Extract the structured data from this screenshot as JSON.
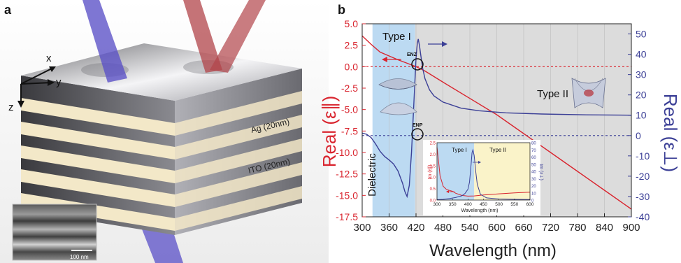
{
  "panels": {
    "a": {
      "label": "a",
      "axes": {
        "x": "x",
        "y": "y",
        "z": "z"
      },
      "layers": {
        "ag": "Ag (20nm)",
        "ito": "ITO (20nm)"
      },
      "sem_scale": "100 nm",
      "colors": {
        "ag": "#8e8e93",
        "ito": "#f3e8c8",
        "blue_beam": "#5a4fc7",
        "red_beam": "#b2444a"
      }
    },
    "b": {
      "label": "b"
    }
  },
  "chart_data": {
    "type": "line",
    "xlabel": "Wavelength (nm)",
    "ylabel_left": "Real (ε∥)",
    "ylabel_right": "Real (ε⊥)",
    "xlim": [
      300,
      900
    ],
    "ylim_left": [
      -17.5,
      5.0
    ],
    "ylim_right": [
      -40,
      55
    ],
    "x_ticks": [
      300,
      360,
      420,
      480,
      540,
      600,
      660,
      720,
      780,
      840,
      900
    ],
    "y_left_ticks": [
      5.0,
      2.5,
      0.0,
      -2.5,
      -5.0,
      -7.5,
      -10.0,
      -12.5,
      -15.0,
      -17.5
    ],
    "y_right_ticks": [
      50,
      40,
      30,
      20,
      10,
      0,
      -10,
      -20,
      -30,
      -40
    ],
    "regions": [
      {
        "name": "Dielectric",
        "from": 300,
        "to": 323,
        "color": "#ffffff"
      },
      {
        "name": "Type I",
        "from": 323,
        "to": 418,
        "color": "#bcdaf2"
      },
      {
        "name": "Type II",
        "from": 418,
        "to": 900,
        "color": "#dcdcdc"
      }
    ],
    "annotations": {
      "enz": "ENZ",
      "enp": "ENP",
      "type1": "Type I",
      "type2": "Type II",
      "dielectric": "Dielectric"
    },
    "series": [
      {
        "name": "Real (ε∥)",
        "axis": "left",
        "color": "#d9252f",
        "x": [
          300,
          320,
          340,
          360,
          380,
          400,
          420,
          440,
          480,
          540,
          600,
          660,
          720,
          780,
          840,
          900
        ],
        "y": [
          3.6,
          2.6,
          1.7,
          1.25,
          0.8,
          0.4,
          0.0,
          -0.5,
          -1.8,
          -3.7,
          -5.6,
          -7.8,
          -10.0,
          -12.2,
          -14.4,
          -16.6
        ]
      },
      {
        "name": "Real (ε⊥)",
        "axis": "right",
        "color": "#3b3f96",
        "x": [
          300,
          310,
          320,
          330,
          340,
          350,
          360,
          370,
          380,
          390,
          395,
          400,
          405,
          410,
          415,
          420,
          423,
          425,
          428,
          430,
          435,
          440,
          450,
          460,
          480,
          520,
          560,
          620,
          700,
          800,
          900
        ],
        "y": [
          1.2,
          0.6,
          -1.0,
          -4.2,
          -7.8,
          -10.3,
          -12.0,
          -14.0,
          -17.5,
          -23.5,
          -27.5,
          -30.0,
          -24.5,
          -8.0,
          15.0,
          38.0,
          45.5,
          47.5,
          44.0,
          40.5,
          33.0,
          28.0,
          22.5,
          19.5,
          16.5,
          13.5,
          12.2,
          11.2,
          10.6,
          10.2,
          10.0
        ]
      }
    ],
    "inset": {
      "xlabel": "Wavelength (nm)",
      "ylabel_left": "Im (ε∥)",
      "ylabel_right": "Im (ε⊥)",
      "xlim": [
        300,
        600
      ],
      "ylim_left": [
        0,
        2.5
      ],
      "ylim_right": [
        0,
        80
      ],
      "x_ticks": [
        300,
        350,
        400,
        450,
        500,
        550,
        600
      ],
      "y_left_ticks": [
        0.0,
        0.5,
        1.0,
        1.5,
        2.0,
        2.5
      ],
      "y_right_ticks": [
        0,
        10,
        20,
        30,
        40,
        50,
        60,
        70,
        80
      ],
      "regions": [
        {
          "name": "Type I",
          "from": 300,
          "to": 420,
          "color": "#bcdaf2"
        },
        {
          "name": "Type II",
          "from": 420,
          "to": 600,
          "color": "#faf3c9"
        }
      ],
      "series": [
        {
          "name": "Im (ε∥)",
          "axis": "left",
          "color": "#d9252f",
          "x": [
            300,
            305,
            310,
            320,
            330,
            340,
            350,
            360,
            380,
            400,
            420,
            450,
            500,
            550,
            600
          ],
          "y": [
            2.3,
            1.7,
            1.05,
            0.6,
            0.47,
            0.42,
            0.38,
            0.3,
            0.2,
            0.17,
            0.18,
            0.22,
            0.27,
            0.31,
            0.34
          ]
        },
        {
          "name": "Im (ε⊥)",
          "axis": "right",
          "color": "#3b3f96",
          "x": [
            300,
            320,
            340,
            360,
            380,
            390,
            400,
            405,
            410,
            413,
            416,
            420,
            425,
            430,
            440,
            460,
            500,
            550,
            600
          ],
          "y": [
            0.5,
            1.0,
            2.0,
            3.5,
            6.0,
            9.0,
            15.0,
            25.0,
            50.0,
            66.0,
            70.0,
            62.0,
            40.0,
            22.0,
            8.0,
            3.0,
            1.5,
            1.0,
            0.8
          ]
        }
      ]
    }
  }
}
